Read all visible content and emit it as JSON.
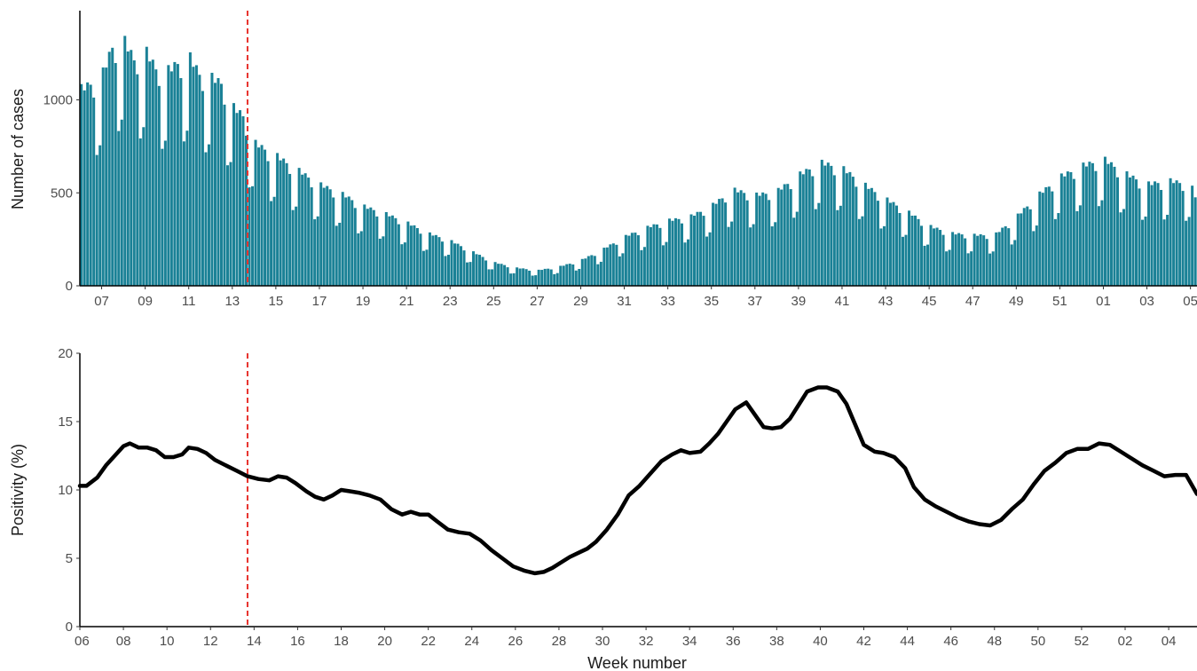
{
  "chart_data": [
    {
      "type": "bar",
      "xlabel": "",
      "ylabel": "Number of cases",
      "ylim": [
        0,
        1480
      ],
      "yticks": [
        0,
        500,
        1000
      ],
      "xticks": [
        "07",
        "09",
        "11",
        "13",
        "15",
        "17",
        "19",
        "21",
        "23",
        "25",
        "27",
        "29",
        "31",
        "33",
        "35",
        "37",
        "39",
        "41",
        "43",
        "45",
        "47",
        "49",
        "51",
        "01",
        "03",
        "05"
      ],
      "x_unit": "week",
      "x_range_weeks": [
        6.0,
        57.3
      ],
      "bar_color": "#1a8196",
      "grid": false,
      "reference_line": {
        "x_week": 13.7,
        "color": "#e8332e",
        "style": "dashed"
      },
      "series_description": "daily case counts",
      "weekly_profile": [
        1.0,
        0.96,
        0.99,
        0.97,
        0.9,
        0.62,
        0.66
      ],
      "trend": [
        [
          6.0,
          1080
        ],
        [
          7.0,
          1150
        ],
        [
          7.5,
          1320
        ],
        [
          8.0,
          1360
        ],
        [
          8.5,
          1250
        ],
        [
          9.0,
          1300
        ],
        [
          9.5,
          1200
        ],
        [
          10.0,
          1180
        ],
        [
          10.5,
          1230
        ],
        [
          11.0,
          1270
        ],
        [
          11.5,
          1170
        ],
        [
          12.0,
          1150
        ],
        [
          12.5,
          1120
        ],
        [
          13.0,
          990
        ],
        [
          13.5,
          940
        ],
        [
          14.0,
          790
        ],
        [
          15.0,
          720
        ],
        [
          16.0,
          640
        ],
        [
          17.0,
          560
        ],
        [
          18.0,
          510
        ],
        [
          19.0,
          440
        ],
        [
          20.0,
          400
        ],
        [
          21.0,
          350
        ],
        [
          22.0,
          290
        ],
        [
          23.0,
          250
        ],
        [
          24.0,
          190
        ],
        [
          25.0,
          130
        ],
        [
          26.0,
          100
        ],
        [
          27.0,
          85
        ],
        [
          28.0,
          105
        ],
        [
          29.0,
          140
        ],
        [
          30.0,
          200
        ],
        [
          31.0,
          270
        ],
        [
          32.0,
          320
        ],
        [
          33.0,
          360
        ],
        [
          34.0,
          380
        ],
        [
          35.0,
          440
        ],
        [
          36.0,
          530
        ],
        [
          37.0,
          500
        ],
        [
          38.0,
          520
        ],
        [
          39.0,
          610
        ],
        [
          40.0,
          680
        ],
        [
          41.0,
          650
        ],
        [
          42.0,
          560
        ],
        [
          43.0,
          480
        ],
        [
          44.0,
          410
        ],
        [
          45.0,
          330
        ],
        [
          46.0,
          290
        ],
        [
          47.0,
          280
        ],
        [
          48.0,
          280
        ],
        [
          49.0,
          380
        ],
        [
          50.0,
          500
        ],
        [
          51.0,
          600
        ],
        [
          52.0,
          660
        ],
        [
          53.0,
          700
        ],
        [
          54.0,
          620
        ],
        [
          55.0,
          560
        ],
        [
          56.0,
          580
        ],
        [
          57.0,
          560
        ],
        [
          57.3,
          470
        ]
      ]
    },
    {
      "type": "line",
      "xlabel": "Week number",
      "ylabel": "Positivity (%)",
      "ylim": [
        0,
        20
      ],
      "yticks": [
        0,
        5,
        10,
        15,
        20
      ],
      "xticks": [
        "06",
        "08",
        "10",
        "12",
        "14",
        "16",
        "18",
        "20",
        "22",
        "24",
        "26",
        "28",
        "30",
        "32",
        "34",
        "36",
        "38",
        "40",
        "42",
        "44",
        "46",
        "48",
        "50",
        "52",
        "02",
        "04"
      ],
      "x_unit": "week",
      "x_range_weeks": [
        6.0,
        57.3
      ],
      "line_color": "#000000",
      "grid": false,
      "reference_line": {
        "x_week": 13.7,
        "color": "#e8332e",
        "style": "dashed"
      },
      "points": [
        [
          6.0,
          10.3
        ],
        [
          6.3,
          10.3
        ],
        [
          6.8,
          10.9
        ],
        [
          7.2,
          11.8
        ],
        [
          7.6,
          12.5
        ],
        [
          8.0,
          13.2
        ],
        [
          8.3,
          13.4
        ],
        [
          8.7,
          13.1
        ],
        [
          9.1,
          13.1
        ],
        [
          9.5,
          12.9
        ],
        [
          9.9,
          12.4
        ],
        [
          10.3,
          12.4
        ],
        [
          10.7,
          12.6
        ],
        [
          11.0,
          13.1
        ],
        [
          11.4,
          13.0
        ],
        [
          11.8,
          12.7
        ],
        [
          12.2,
          12.2
        ],
        [
          12.7,
          11.8
        ],
        [
          13.2,
          11.4
        ],
        [
          13.7,
          11.0
        ],
        [
          14.2,
          10.8
        ],
        [
          14.7,
          10.7
        ],
        [
          15.1,
          11.0
        ],
        [
          15.5,
          10.9
        ],
        [
          15.9,
          10.5
        ],
        [
          16.4,
          9.9
        ],
        [
          16.8,
          9.5
        ],
        [
          17.2,
          9.3
        ],
        [
          17.6,
          9.6
        ],
        [
          18.0,
          10.0
        ],
        [
          18.4,
          9.9
        ],
        [
          18.8,
          9.8
        ],
        [
          19.3,
          9.6
        ],
        [
          19.8,
          9.3
        ],
        [
          20.3,
          8.6
        ],
        [
          20.8,
          8.2
        ],
        [
          21.2,
          8.4
        ],
        [
          21.6,
          8.2
        ],
        [
          22.0,
          8.2
        ],
        [
          22.4,
          7.7
        ],
        [
          22.9,
          7.1
        ],
        [
          23.4,
          6.9
        ],
        [
          23.9,
          6.8
        ],
        [
          24.4,
          6.3
        ],
        [
          24.9,
          5.6
        ],
        [
          25.4,
          5.0
        ],
        [
          25.9,
          4.4
        ],
        [
          26.4,
          4.1
        ],
        [
          26.9,
          3.9
        ],
        [
          27.3,
          4.0
        ],
        [
          27.7,
          4.3
        ],
        [
          28.1,
          4.7
        ],
        [
          28.5,
          5.1
        ],
        [
          28.9,
          5.4
        ],
        [
          29.3,
          5.7
        ],
        [
          29.7,
          6.2
        ],
        [
          30.2,
          7.1
        ],
        [
          30.7,
          8.2
        ],
        [
          31.2,
          9.6
        ],
        [
          31.7,
          10.3
        ],
        [
          32.2,
          11.2
        ],
        [
          32.7,
          12.1
        ],
        [
          33.2,
          12.6
        ],
        [
          33.6,
          12.9
        ],
        [
          34.0,
          12.7
        ],
        [
          34.5,
          12.8
        ],
        [
          34.9,
          13.4
        ],
        [
          35.3,
          14.1
        ],
        [
          35.7,
          15.0
        ],
        [
          36.1,
          15.9
        ],
        [
          36.6,
          16.4
        ],
        [
          37.0,
          15.5
        ],
        [
          37.4,
          14.6
        ],
        [
          37.8,
          14.5
        ],
        [
          38.2,
          14.6
        ],
        [
          38.6,
          15.2
        ],
        [
          39.0,
          16.2
        ],
        [
          39.4,
          17.2
        ],
        [
          39.9,
          17.5
        ],
        [
          40.3,
          17.5
        ],
        [
          40.8,
          17.2
        ],
        [
          41.2,
          16.3
        ],
        [
          41.6,
          14.8
        ],
        [
          42.0,
          13.3
        ],
        [
          42.5,
          12.8
        ],
        [
          42.9,
          12.7
        ],
        [
          43.4,
          12.4
        ],
        [
          43.9,
          11.6
        ],
        [
          44.3,
          10.2
        ],
        [
          44.8,
          9.3
        ],
        [
          45.3,
          8.8
        ],
        [
          45.8,
          8.4
        ],
        [
          46.3,
          8.0
        ],
        [
          46.8,
          7.7
        ],
        [
          47.3,
          7.5
        ],
        [
          47.8,
          7.4
        ],
        [
          48.3,
          7.8
        ],
        [
          48.8,
          8.6
        ],
        [
          49.3,
          9.3
        ],
        [
          49.8,
          10.4
        ],
        [
          50.3,
          11.4
        ],
        [
          50.8,
          12.0
        ],
        [
          51.3,
          12.7
        ],
        [
          51.8,
          13.0
        ],
        [
          52.3,
          13.0
        ],
        [
          52.8,
          13.4
        ],
        [
          53.3,
          13.3
        ],
        [
          53.8,
          12.8
        ],
        [
          54.3,
          12.3
        ],
        [
          54.8,
          11.8
        ],
        [
          55.3,
          11.4
        ],
        [
          55.8,
          11.0
        ],
        [
          56.3,
          11.1
        ],
        [
          56.8,
          11.1
        ],
        [
          57.3,
          9.7
        ]
      ]
    }
  ]
}
